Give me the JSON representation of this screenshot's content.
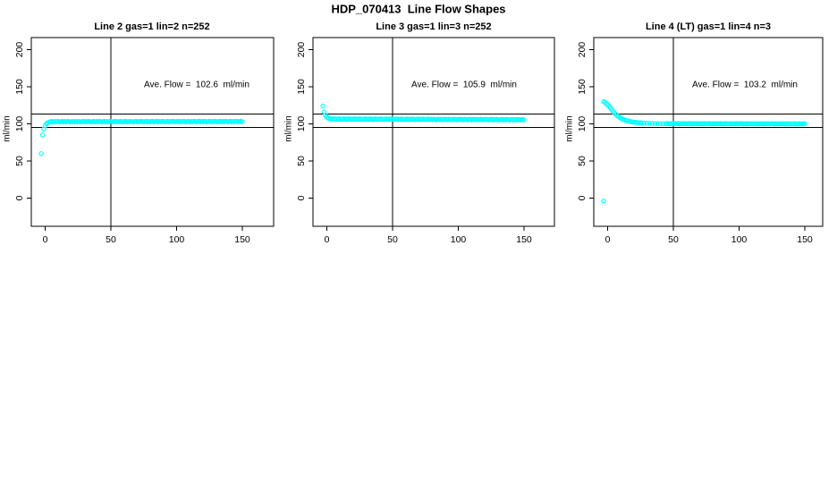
{
  "figure": {
    "title": "HDP_070413  Line Flow Shapes",
    "background": "#ffffff",
    "point_color": "#00FFFF",
    "axis_color": "#000000"
  },
  "chart_data": {
    "type": "scatter",
    "layout": "1 row x 3 columns",
    "marker": "open-circle",
    "grid": false,
    "xlim": [
      -10.5,
      173.5
    ],
    "ylim": [
      -38,
      216
    ],
    "xticks": [
      0,
      50,
      100,
      150
    ],
    "yticks": [
      0,
      50,
      100,
      150,
      200
    ],
    "panels": [
      {
        "title": "Line 2 gas=1 lin=2 n=252",
        "ylabel": "ml/min",
        "annotation": "Ave. Flow =  102.6  ml/min",
        "ave_flow_ml_min": 102.6,
        "n": 252,
        "reference_lines": {
          "h": [
            95,
            113.5
          ],
          "v": 50
        },
        "lead_points": [
          [
            -3,
            60
          ],
          [
            -2,
            85
          ],
          [
            -1,
            93
          ],
          [
            0,
            97.5
          ],
          [
            1,
            100
          ],
          [
            2,
            101.5
          ],
          [
            3,
            102.3
          ]
        ],
        "band": {
          "x_start": 4,
          "x_end": 150,
          "x_step": 1,
          "y_start": 103,
          "y_end": 103.2,
          "y_jitter": [
            0,
            0.4,
            -0.3,
            0.2,
            -0.2,
            0.35,
            0.1,
            -0.35
          ]
        }
      },
      {
        "title": "Line 3 gas=1 lin=3 n=252",
        "ylabel": "ml/min",
        "annotation": "Ave. Flow =  105.9  ml/min",
        "ave_flow_ml_min": 105.9,
        "n": 252,
        "reference_lines": {
          "h": [
            95,
            113.5
          ],
          "v": 50
        },
        "lead_points": [
          [
            -3,
            124
          ],
          [
            -2,
            116
          ],
          [
            -1,
            111.5
          ],
          [
            0,
            109
          ],
          [
            1,
            107.8
          ],
          [
            2,
            107.2
          ],
          [
            3,
            106.8
          ]
        ],
        "band": {
          "x_start": 4,
          "x_end": 150,
          "x_step": 1,
          "y_start": 106.6,
          "y_end": 105.6,
          "y_jitter": [
            0,
            0.4,
            -0.3,
            0.2,
            -0.2,
            0.35,
            0.1,
            -0.35
          ]
        }
      },
      {
        "title": "Line 4 (LT) gas=1 lin=4 n=3",
        "ylabel": "ml/min",
        "annotation": "Ave. Flow =  103.2  ml/min",
        "ave_flow_ml_min": 103.2,
        "n": 3,
        "reference_lines": {
          "h": [
            95,
            113.5
          ],
          "v": 50
        },
        "lead_points": [
          [
            -3,
            -4
          ],
          [
            -3,
            130
          ],
          [
            -2,
            129
          ],
          [
            -1,
            127.5
          ],
          [
            0,
            126
          ],
          [
            1,
            124
          ],
          [
            2,
            122
          ],
          [
            3,
            119.5
          ],
          [
            4,
            117.2
          ],
          [
            5,
            115.2
          ],
          [
            6,
            113.3
          ],
          [
            7,
            111.6
          ],
          [
            8,
            110.1
          ],
          [
            9,
            108.8
          ],
          [
            10,
            107.7
          ],
          [
            11,
            106.8
          ],
          [
            12,
            106
          ],
          [
            13,
            105.3
          ],
          [
            14,
            104.7
          ],
          [
            15,
            104.2
          ],
          [
            16,
            103.7
          ],
          [
            17,
            103.3
          ],
          [
            18,
            102.9
          ],
          [
            19,
            102.6
          ],
          [
            20,
            102.3
          ],
          [
            21,
            102.1
          ],
          [
            22,
            101.9
          ],
          [
            23,
            101.7
          ],
          [
            24,
            101.5
          ],
          [
            25,
            101.4
          ],
          [
            26,
            101.2
          ],
          [
            28,
            101
          ],
          [
            30,
            100.8
          ],
          [
            32,
            100.7
          ],
          [
            34,
            100.6
          ],
          [
            36,
            100.5
          ],
          [
            38,
            100.5
          ],
          [
            40,
            100.4
          ],
          [
            42,
            100.4
          ],
          [
            44,
            100.3
          ]
        ],
        "band": {
          "x_start": 45,
          "x_end": 150,
          "x_step": 1,
          "y_start": 100.3,
          "y_end": 100,
          "y_jitter": [
            0,
            0.3,
            -0.25,
            0.2,
            -0.2,
            0.3,
            -0.1,
            0.15
          ]
        }
      }
    ]
  }
}
